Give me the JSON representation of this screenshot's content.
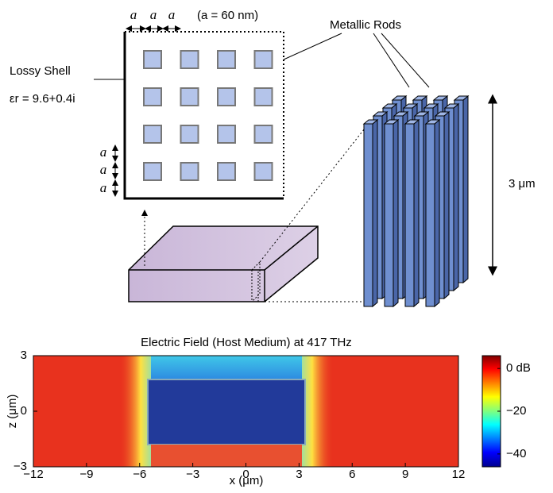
{
  "diagram": {
    "spacing_labels": [
      "a",
      "a",
      "a"
    ],
    "lattice_note": "(a = 60 nm)",
    "shell_label": "Lossy Shell",
    "permittivity": "εr = 9.6+0.4i",
    "rods_label": "Metallic Rods",
    "height_label": "3 μm",
    "side_labels": [
      "a",
      "a",
      "a"
    ]
  },
  "chart_data": {
    "type": "heatmap",
    "title": "Electric Field (Host Medium) at 417 THz",
    "x_label": "x (μm)",
    "y_label": "z (μm)",
    "xlim": [
      -12,
      12
    ],
    "xticks": [
      {
        "value": -12,
        "label": "−12"
      },
      {
        "value": -9,
        "label": "−9"
      },
      {
        "value": -6,
        "label": "−6"
      },
      {
        "value": -3,
        "label": "−3"
      },
      0,
      3,
      6,
      9,
      12
    ],
    "ylim": [
      -3,
      3
    ],
    "yticks": [
      3,
      0,
      {
        "value": -3,
        "label": "−3"
      }
    ],
    "colorbar": {
      "clim": [
        -46,
        6
      ],
      "ticks": [
        {
          "value": 0,
          "label": "0 dB"
        },
        {
          "value": -20,
          "label": "−20"
        },
        {
          "value": -40,
          "label": "−40"
        }
      ]
    }
  }
}
